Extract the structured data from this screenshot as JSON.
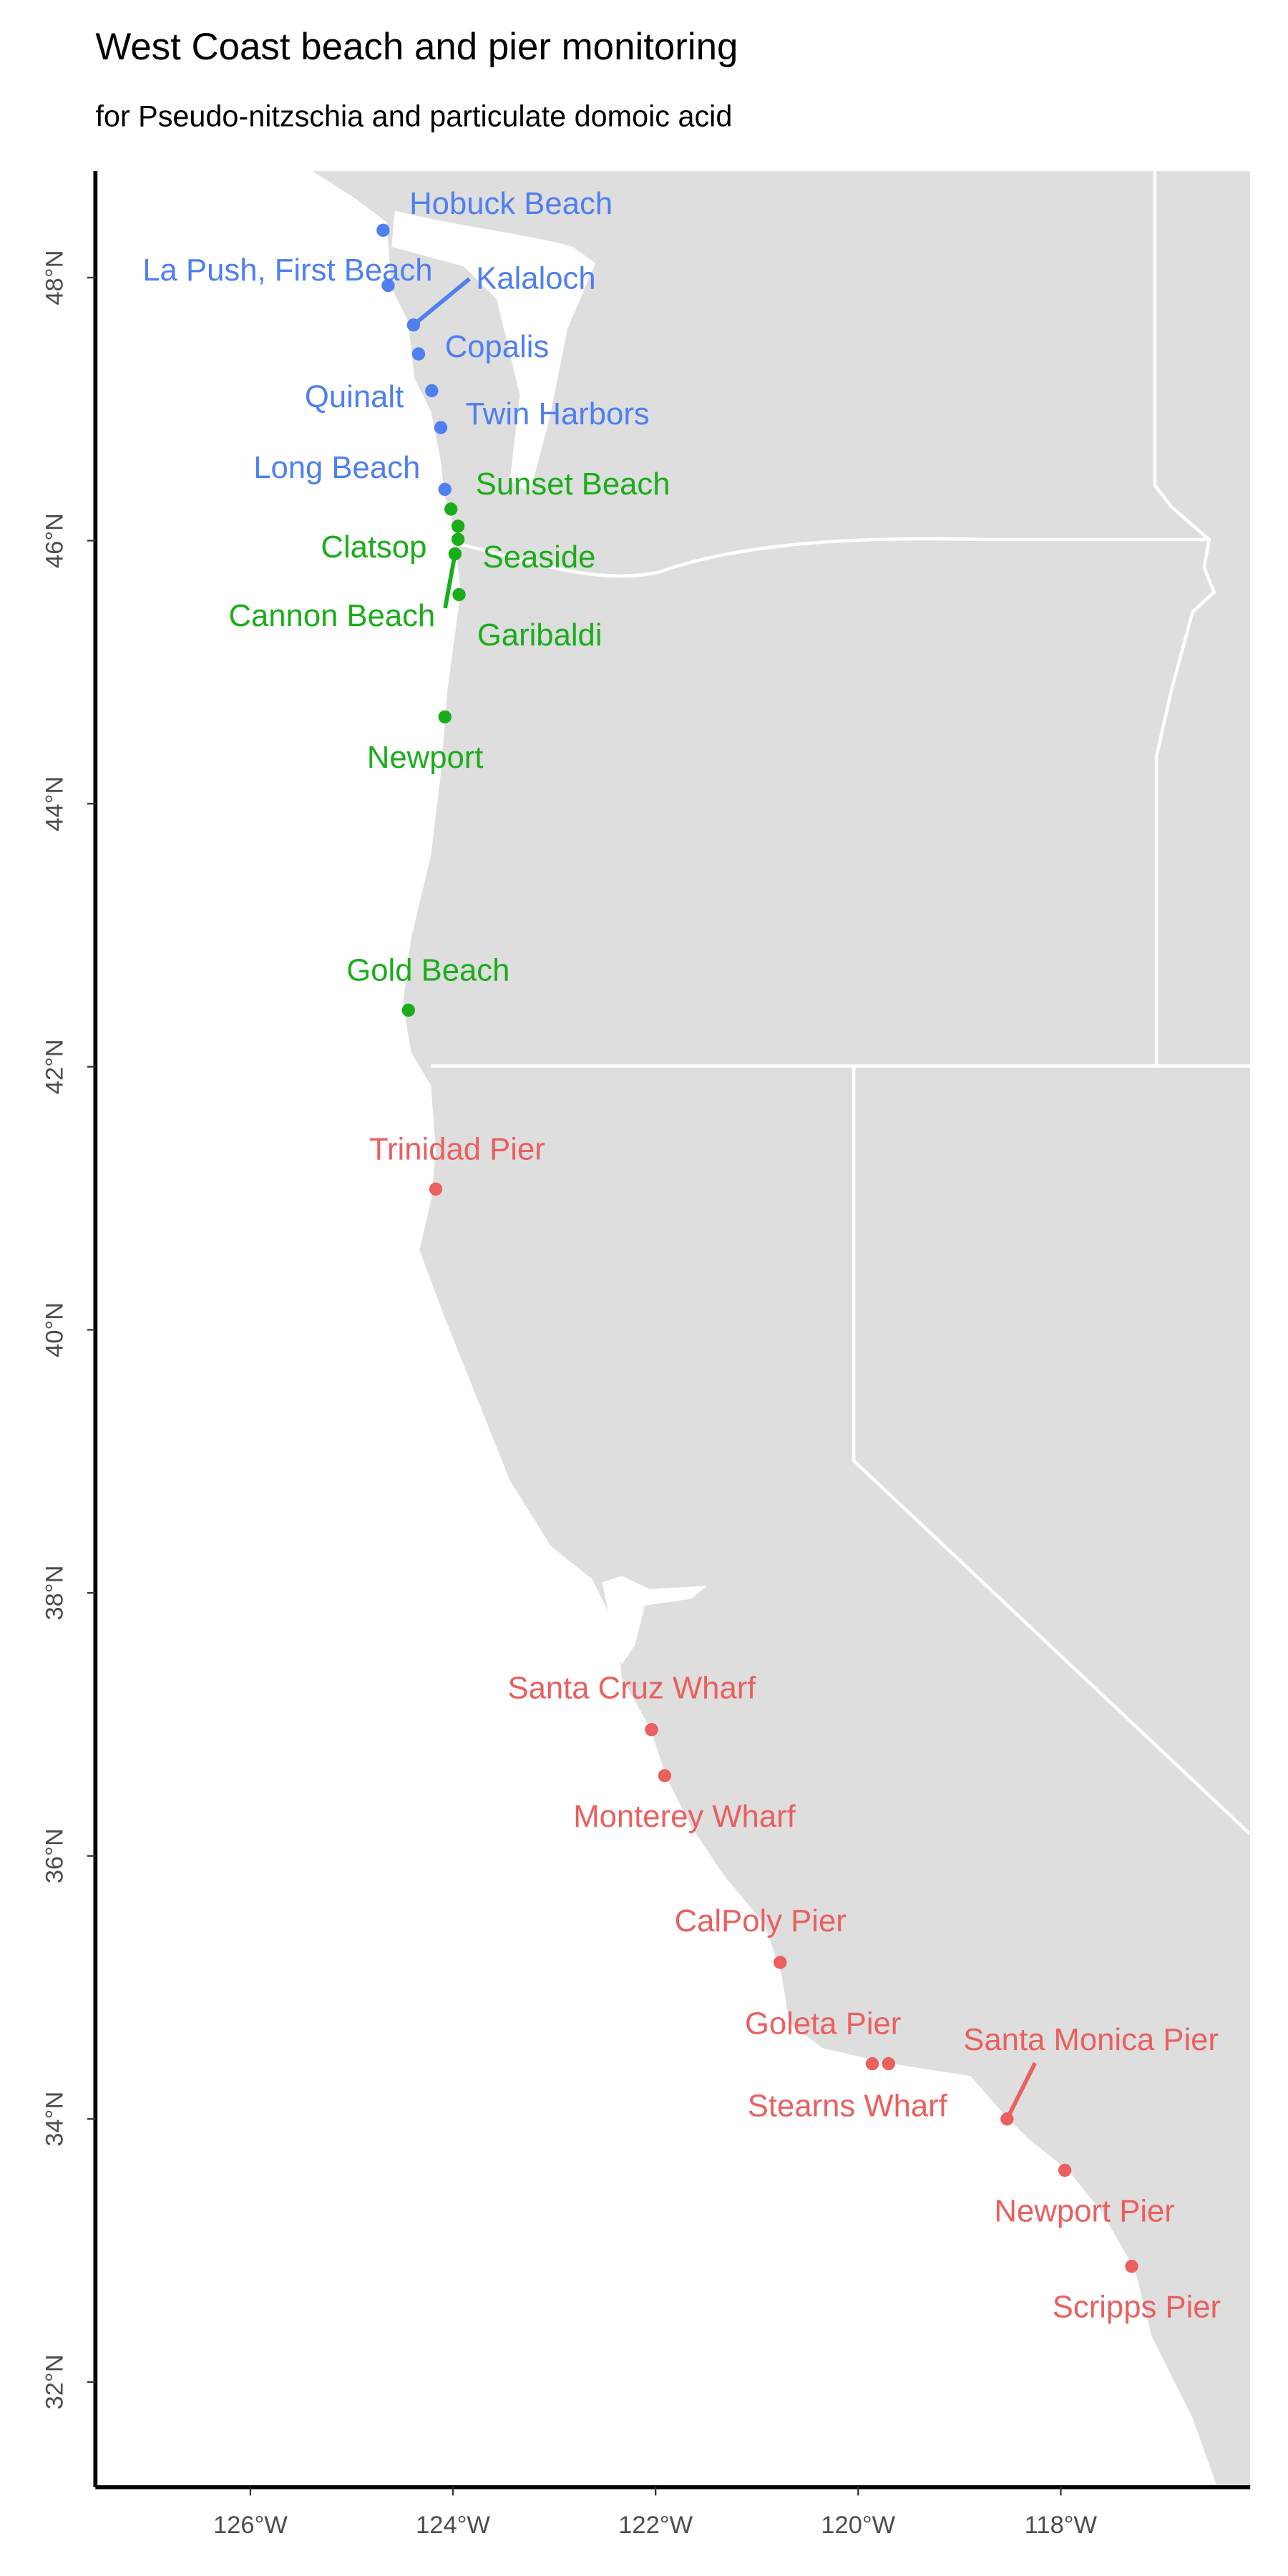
{
  "chart_data": {
    "type": "map",
    "title": "West Coast beach and pier monitoring",
    "subtitle": "for Pseudo-nitzschia and particulate domoic acid",
    "xlim": [
      -127.53,
      -116.13
    ],
    "ylim": [
      31.2,
      48.81
    ],
    "xticks": [
      {
        "value": -126,
        "label": "126°W"
      },
      {
        "value": -124,
        "label": "124°W"
      },
      {
        "value": -122,
        "label": "122°W"
      },
      {
        "value": -120,
        "label": "120°W"
      },
      {
        "value": -118,
        "label": "118°W"
      }
    ],
    "yticks": [
      {
        "value": 32,
        "label": "32°N"
      },
      {
        "value": 34,
        "label": "34°N"
      },
      {
        "value": 36,
        "label": "36°N"
      },
      {
        "value": 38,
        "label": "38°N"
      },
      {
        "value": 40,
        "label": "40°N"
      },
      {
        "value": 42,
        "label": "42°N"
      },
      {
        "value": 44,
        "label": "44°N"
      },
      {
        "value": 46,
        "label": "46°N"
      },
      {
        "value": 48,
        "label": "48°N"
      }
    ],
    "points": [
      {
        "label": "Hobuck Beach",
        "lon": -124.69,
        "lat": 48.36,
        "color": "#4f7ff0"
      },
      {
        "label": "La Push, First Beach",
        "lon": -124.64,
        "lat": 47.94,
        "color": "#4f7ff0"
      },
      {
        "label": "Kalaloch",
        "lon": -124.39,
        "lat": 47.64,
        "color": "#4f7ff0"
      },
      {
        "label": "Copalis",
        "lon": -124.34,
        "lat": 47.42,
        "color": "#4f7ff0"
      },
      {
        "label": "Quinalt",
        "lon": -124.21,
        "lat": 47.14,
        "color": "#4f7ff0"
      },
      {
        "label": "Twin Harbors",
        "lon": -124.12,
        "lat": 46.86,
        "color": "#4f7ff0"
      },
      {
        "label": "Long Beach",
        "lon": -124.08,
        "lat": 46.39,
        "color": "#4f7ff0"
      },
      {
        "label": "Sunset Beach",
        "lon": -124.02,
        "lat": 46.24,
        "color": "#1aad1a"
      },
      {
        "label": "Clatsop",
        "lon": -123.95,
        "lat": 46.11,
        "color": "#1aad1a"
      },
      {
        "label": "Seaside",
        "lon": -123.95,
        "lat": 46.01,
        "color": "#1aad1a"
      },
      {
        "label": "Cannon Beach",
        "lon": -123.98,
        "lat": 45.9,
        "color": "#1aad1a"
      },
      {
        "label": "Garibaldi",
        "lon": -123.94,
        "lat": 45.59,
        "color": "#1aad1a"
      },
      {
        "label": "Newport",
        "lon": -124.08,
        "lat": 44.66,
        "color": "#1aad1a"
      },
      {
        "label": "Gold Beach",
        "lon": -124.44,
        "lat": 42.43,
        "color": "#1aad1a"
      },
      {
        "label": "Trinidad Pier",
        "lon": -124.17,
        "lat": 41.07,
        "color": "#eb5f5f"
      },
      {
        "label": "Santa Cruz Wharf",
        "lon": -122.04,
        "lat": 36.96,
        "color": "#eb5f5f"
      },
      {
        "label": "Monterey Wharf",
        "lon": -121.91,
        "lat": 36.61,
        "color": "#eb5f5f"
      },
      {
        "label": "CalPoly Pier",
        "lon": -120.77,
        "lat": 35.19,
        "color": "#eb5f5f"
      },
      {
        "label": "Goleta Pier",
        "lon": -119.86,
        "lat": 34.42,
        "color": "#eb5f5f"
      },
      {
        "label": "Stearns Wharf",
        "lon": -119.7,
        "lat": 34.42,
        "color": "#eb5f5f"
      },
      {
        "label": "Santa Monica Pier",
        "lon": -118.53,
        "lat": 34.0,
        "color": "#eb5f5f"
      },
      {
        "label": "Newport Pier",
        "lon": -117.96,
        "lat": 33.61,
        "color": "#eb5f5f"
      },
      {
        "label": "Scripps Pier",
        "lon": -117.3,
        "lat": 32.88,
        "color": "#eb5f5f"
      }
    ]
  }
}
